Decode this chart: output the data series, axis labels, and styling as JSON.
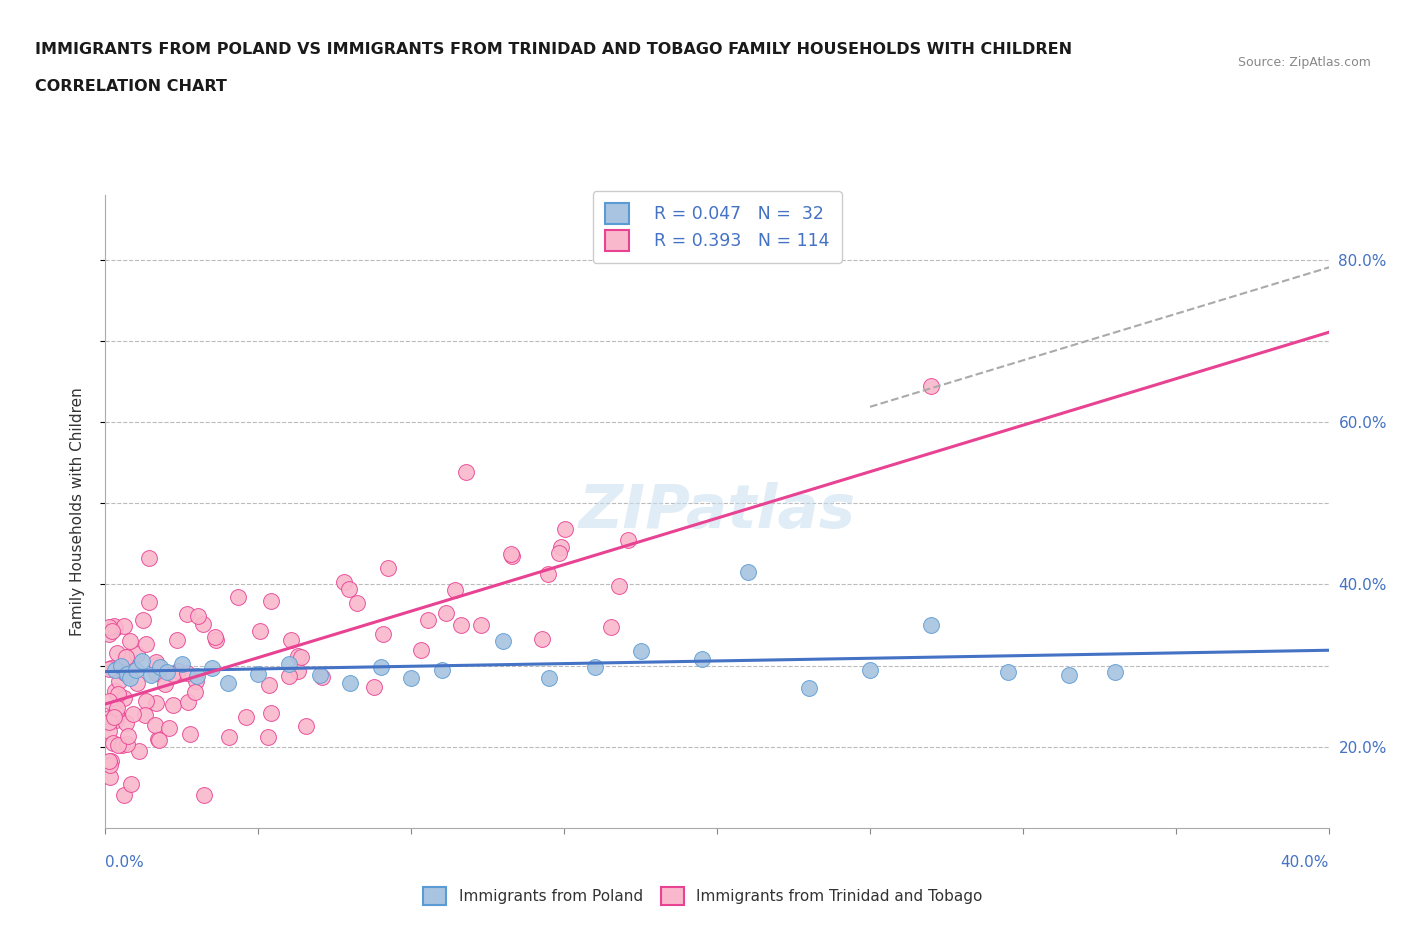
{
  "title_line1": "IMMIGRANTS FROM POLAND VS IMMIGRANTS FROM TRINIDAD AND TOBAGO FAMILY HOUSEHOLDS WITH CHILDREN",
  "title_line2": "CORRELATION CHART",
  "source_text": "Source: ZipAtlas.com",
  "xlabel_bottom_left": "0.0%",
  "xlabel_bottom_right": "40.0%",
  "ylabel": "Family Households with Children",
  "xlim": [
    0.0,
    0.4
  ],
  "ylim": [
    0.1,
    0.88
  ],
  "yticks": [
    0.2,
    0.3,
    0.4,
    0.5,
    0.6,
    0.7,
    0.8
  ],
  "right_ytick_labels": [
    "20.0%",
    "",
    "40.0%",
    "",
    "60.0%",
    "",
    "80.0%"
  ],
  "legend_r1": "R = 0.047",
  "legend_n1": "N =  32",
  "legend_r2": "R = 0.393",
  "legend_n2": "N = 114",
  "color_poland": "#a8c4e0",
  "color_poland_dark": "#5b9bd5",
  "color_tt": "#f9b8cc",
  "color_tt_dark": "#e84393",
  "color_poland_line": "#4472c4",
  "color_tt_line": "#e84393",
  "color_dashed": "#aaaaaa",
  "watermark": "ZIPatlas",
  "background_color": "#ffffff",
  "grid_color": "#bbbbbb"
}
